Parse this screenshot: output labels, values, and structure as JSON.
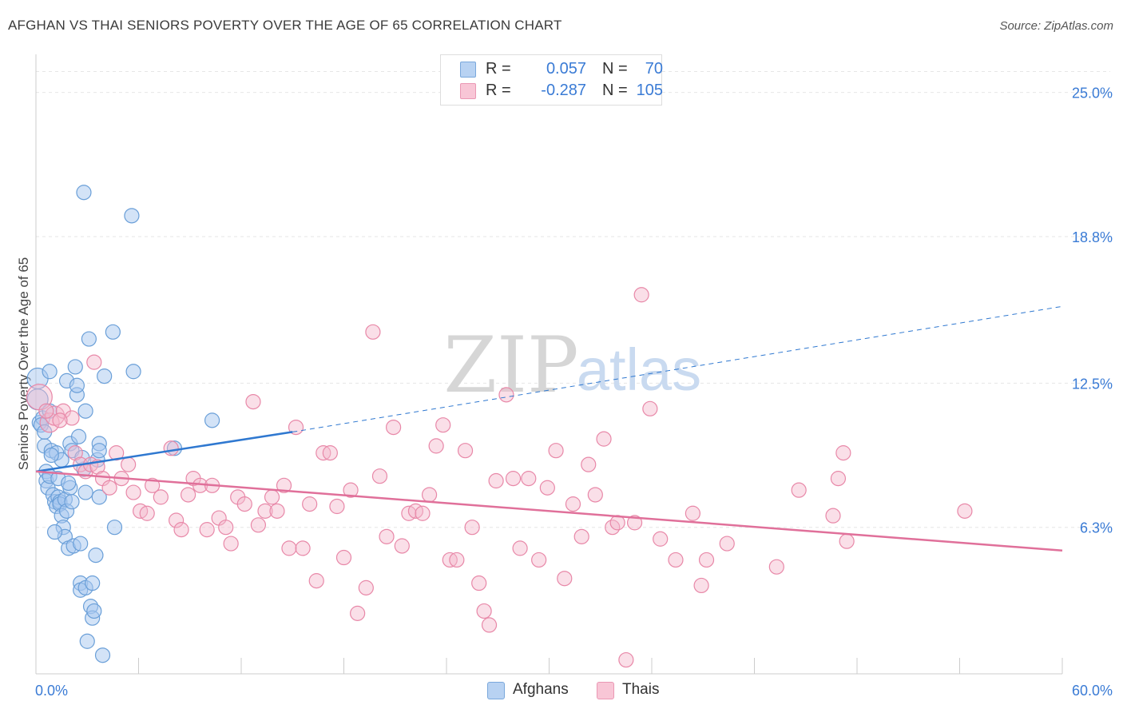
{
  "title": "AFGHAN VS THAI SENIORS POVERTY OVER THE AGE OF 65 CORRELATION CHART",
  "source": "Source: ZipAtlas.com",
  "watermark": {
    "zip": "ZIP",
    "atlas": "atlas"
  },
  "legend_top": {
    "afghans": {
      "r_label": "R =",
      "r_value": "0.057",
      "n_label": "N =",
      "n_value": "70"
    },
    "thais": {
      "r_label": "R =",
      "r_value": "-0.287",
      "n_label": "N =",
      "n_value": "105"
    }
  },
  "legend_bottom": {
    "afghans": "Afghans",
    "thais": "Thais"
  },
  "colors": {
    "afghans_fill": "#a8c8f0",
    "afghans_stroke": "#6a9fd8",
    "afghans_line": "#2f78d0",
    "thais_fill": "#f5b8cc",
    "thais_stroke": "#e888a8",
    "thais_line": "#e0709a",
    "grid": "#e6e6e6",
    "axis_text": "#3a7bd5"
  },
  "chart_data": {
    "type": "scatter",
    "title": "AFGHAN VS THAI SENIORS POVERTY OVER THE AGE OF 65 CORRELATION CHART",
    "xlabel": "",
    "ylabel": "Seniors Poverty Over the Age of 65",
    "xlim": [
      0,
      60
    ],
    "ylim": [
      0,
      26.5
    ],
    "x_tick_labels": [
      "0.0%",
      "60.0%"
    ],
    "y_ticks": [
      6.3,
      12.5,
      18.8,
      25.0
    ],
    "y_tick_labels": [
      "6.3%",
      "12.5%",
      "18.8%",
      "25.0%"
    ],
    "grid": true,
    "series": [
      {
        "name": "Afghans",
        "R": 0.057,
        "N": 70,
        "trend": {
          "x": [
            0,
            15
          ],
          "y": [
            8.7,
            10.4
          ],
          "dashed_to": [
            60,
            15.8
          ]
        },
        "points": [
          [
            0.1,
            12.7
          ],
          [
            0.1,
            11.8
          ],
          [
            0.2,
            10.8
          ],
          [
            0.4,
            11.0
          ],
          [
            0.5,
            9.8
          ],
          [
            0.6,
            8.7
          ],
          [
            0.6,
            8.3
          ],
          [
            0.7,
            8.0
          ],
          [
            0.8,
            8.5
          ],
          [
            0.8,
            13.0
          ],
          [
            0.8,
            11.3
          ],
          [
            0.9,
            9.6
          ],
          [
            1.0,
            7.7
          ],
          [
            1.1,
            7.4
          ],
          [
            1.2,
            7.2
          ],
          [
            1.2,
            9.5
          ],
          [
            1.3,
            7.6
          ],
          [
            1.4,
            7.4
          ],
          [
            1.4,
            7.3
          ],
          [
            1.5,
            9.2
          ],
          [
            1.5,
            6.8
          ],
          [
            1.6,
            6.3
          ],
          [
            1.7,
            5.9
          ],
          [
            1.7,
            7.5
          ],
          [
            1.8,
            7.0
          ],
          [
            1.8,
            12.6
          ],
          [
            1.9,
            5.4
          ],
          [
            2.0,
            8.0
          ],
          [
            2.0,
            9.9
          ],
          [
            2.1,
            9.6
          ],
          [
            2.1,
            7.4
          ],
          [
            2.2,
            5.5
          ],
          [
            2.3,
            13.2
          ],
          [
            2.4,
            12.0
          ],
          [
            2.4,
            12.4
          ],
          [
            2.5,
            10.2
          ],
          [
            2.6,
            3.9
          ],
          [
            2.6,
            5.6
          ],
          [
            2.6,
            3.6
          ],
          [
            2.8,
            20.7
          ],
          [
            2.8,
            8.8
          ],
          [
            2.9,
            11.3
          ],
          [
            2.9,
            3.7
          ],
          [
            2.9,
            7.8
          ],
          [
            3.0,
            1.4
          ],
          [
            3.1,
            14.4
          ],
          [
            3.2,
            2.9
          ],
          [
            3.3,
            3.9
          ],
          [
            3.3,
            2.4
          ],
          [
            3.4,
            2.7
          ],
          [
            3.5,
            5.1
          ],
          [
            3.6,
            9.2
          ],
          [
            3.7,
            9.9
          ],
          [
            3.7,
            7.6
          ],
          [
            3.7,
            9.6
          ],
          [
            3.9,
            0.8
          ],
          [
            4.0,
            12.8
          ],
          [
            4.5,
            14.7
          ],
          [
            4.6,
            6.3
          ],
          [
            5.6,
            19.7
          ],
          [
            5.7,
            13.0
          ],
          [
            8.1,
            9.7
          ],
          [
            10.3,
            10.9
          ],
          [
            0.3,
            10.7
          ],
          [
            1.1,
            6.1
          ],
          [
            1.3,
            8.4
          ],
          [
            0.5,
            10.4
          ],
          [
            2.7,
            9.3
          ],
          [
            0.9,
            9.4
          ],
          [
            1.9,
            8.2
          ]
        ]
      },
      {
        "name": "Thais",
        "R": -0.287,
        "N": 105,
        "trend": {
          "x": [
            0,
            60
          ],
          "y": [
            8.7,
            5.3
          ]
        },
        "points": [
          [
            0.2,
            11.9
          ],
          [
            0.8,
            10.8
          ],
          [
            1.1,
            11.1
          ],
          [
            1.6,
            11.3
          ],
          [
            2.1,
            11.0
          ],
          [
            2.3,
            9.5
          ],
          [
            2.6,
            9.0
          ],
          [
            2.9,
            8.7
          ],
          [
            3.2,
            9.0
          ],
          [
            3.4,
            13.4
          ],
          [
            3.6,
            8.9
          ],
          [
            3.9,
            8.4
          ],
          [
            4.3,
            8.0
          ],
          [
            4.7,
            9.5
          ],
          [
            5.0,
            8.4
          ],
          [
            5.4,
            9.0
          ],
          [
            5.7,
            7.8
          ],
          [
            6.1,
            7.0
          ],
          [
            6.5,
            6.9
          ],
          [
            6.8,
            8.1
          ],
          [
            7.3,
            7.6
          ],
          [
            7.9,
            9.7
          ],
          [
            8.2,
            6.6
          ],
          [
            8.5,
            6.2
          ],
          [
            8.9,
            7.7
          ],
          [
            9.2,
            8.4
          ],
          [
            9.6,
            8.1
          ],
          [
            10.0,
            6.2
          ],
          [
            10.3,
            8.1
          ],
          [
            10.7,
            6.7
          ],
          [
            11.1,
            6.3
          ],
          [
            11.4,
            5.6
          ],
          [
            11.8,
            7.6
          ],
          [
            12.2,
            7.3
          ],
          [
            12.7,
            11.7
          ],
          [
            13.0,
            6.4
          ],
          [
            13.4,
            7.0
          ],
          [
            13.8,
            7.6
          ],
          [
            14.1,
            7.0
          ],
          [
            14.5,
            8.1
          ],
          [
            14.8,
            5.4
          ],
          [
            15.2,
            10.6
          ],
          [
            15.6,
            5.4
          ],
          [
            16.0,
            7.3
          ],
          [
            16.4,
            4.0
          ],
          [
            16.8,
            9.5
          ],
          [
            17.2,
            9.5
          ],
          [
            17.6,
            7.2
          ],
          [
            18.0,
            5.0
          ],
          [
            18.4,
            7.9
          ],
          [
            18.8,
            2.6
          ],
          [
            19.3,
            3.7
          ],
          [
            19.7,
            14.7
          ],
          [
            20.1,
            8.5
          ],
          [
            20.5,
            5.9
          ],
          [
            20.9,
            10.6
          ],
          [
            21.4,
            5.5
          ],
          [
            21.8,
            6.9
          ],
          [
            22.2,
            7.0
          ],
          [
            22.6,
            6.9
          ],
          [
            23.0,
            7.7
          ],
          [
            23.4,
            9.8
          ],
          [
            23.8,
            10.7
          ],
          [
            24.2,
            4.9
          ],
          [
            24.6,
            4.9
          ],
          [
            25.1,
            9.6
          ],
          [
            25.5,
            6.3
          ],
          [
            25.9,
            3.9
          ],
          [
            26.2,
            2.7
          ],
          [
            26.5,
            2.1
          ],
          [
            26.9,
            8.3
          ],
          [
            27.5,
            12.0
          ],
          [
            27.9,
            8.4
          ],
          [
            28.3,
            5.4
          ],
          [
            28.8,
            8.4
          ],
          [
            29.4,
            4.9
          ],
          [
            29.9,
            8.0
          ],
          [
            30.4,
            9.6
          ],
          [
            30.9,
            4.1
          ],
          [
            31.4,
            7.3
          ],
          [
            31.9,
            5.9
          ],
          [
            32.3,
            9.0
          ],
          [
            32.7,
            7.7
          ],
          [
            33.2,
            10.1
          ],
          [
            33.7,
            6.3
          ],
          [
            34.0,
            6.5
          ],
          [
            34.5,
            0.6
          ],
          [
            35.0,
            6.5
          ],
          [
            35.4,
            16.3
          ],
          [
            35.9,
            11.4
          ],
          [
            36.5,
            5.8
          ],
          [
            37.4,
            4.9
          ],
          [
            38.4,
            6.9
          ],
          [
            38.9,
            3.8
          ],
          [
            39.2,
            4.9
          ],
          [
            40.4,
            5.6
          ],
          [
            43.3,
            4.6
          ],
          [
            44.6,
            7.9
          ],
          [
            46.6,
            6.8
          ],
          [
            46.9,
            8.4
          ],
          [
            47.2,
            9.5
          ],
          [
            47.4,
            5.7
          ],
          [
            54.3,
            7.0
          ],
          [
            1.4,
            10.9
          ],
          [
            0.6,
            11.3
          ]
        ]
      }
    ]
  }
}
